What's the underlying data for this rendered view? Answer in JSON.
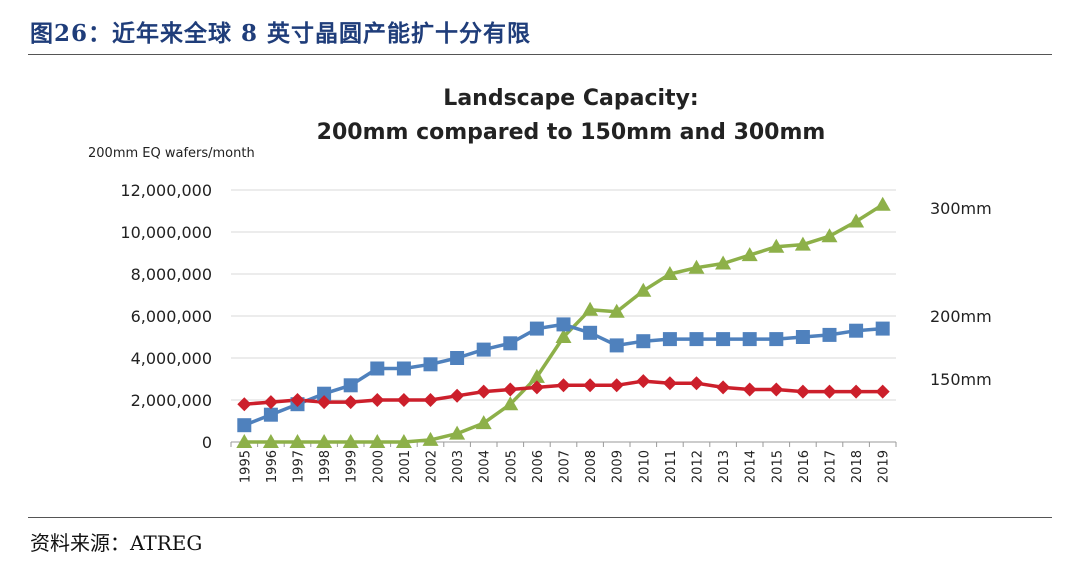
{
  "figure": {
    "title": "图26：近年来全球 8 英寸晶圆产能扩十分有限",
    "source": "资料来源：ATREG"
  },
  "chart_data": {
    "type": "line",
    "title": [
      "Landscape Capacity:",
      "200mm compared to 150mm and 300mm"
    ],
    "ylabel": "200mm EQ wafers/month",
    "xlabel": "",
    "ylim": [
      0,
      12000000
    ],
    "yticks": [
      0,
      2000000,
      4000000,
      6000000,
      8000000,
      10000000,
      12000000
    ],
    "ytick_labels": [
      "0",
      "2,000,000",
      "4,000,000",
      "6,000,000",
      "8,000,000",
      "10,000,000",
      "12,000,000"
    ],
    "grid": true,
    "x": [
      "1995",
      "1996",
      "1997",
      "1998",
      "1999",
      "2000",
      "2001",
      "2002",
      "2003",
      "2004",
      "2005",
      "2006",
      "2007",
      "2008",
      "2009",
      "2010",
      "2011",
      "2012",
      "2013",
      "2014",
      "2015",
      "2016",
      "2017",
      "2018",
      "2019"
    ],
    "series": [
      {
        "name": "300mm",
        "color": "#8db049",
        "marker": "triangle",
        "values": [
          0,
          0,
          0,
          0,
          0,
          0,
          0,
          100000,
          400000,
          900000,
          1800000,
          3100000,
          5000000,
          6300000,
          6200000,
          7200000,
          8000000,
          8300000,
          8500000,
          8900000,
          9300000,
          9400000,
          9800000,
          10500000,
          11300000
        ]
      },
      {
        "name": "200mm",
        "color": "#4f81bd",
        "marker": "square",
        "values": [
          800000,
          1300000,
          1800000,
          2300000,
          2700000,
          3500000,
          3500000,
          3700000,
          4000000,
          4400000,
          4700000,
          5400000,
          5600000,
          5200000,
          4600000,
          4800000,
          4900000,
          4900000,
          4900000,
          4900000,
          4900000,
          5000000,
          5100000,
          5300000,
          5400000
        ]
      },
      {
        "name": "150mm",
        "color": "#cc1f2b",
        "marker": "diamond",
        "values": [
          1800000,
          1900000,
          2000000,
          1900000,
          1900000,
          2000000,
          2000000,
          2000000,
          2200000,
          2400000,
          2500000,
          2600000,
          2700000,
          2700000,
          2700000,
          2900000,
          2800000,
          2800000,
          2600000,
          2500000,
          2500000,
          2400000,
          2400000,
          2400000,
          2400000
        ]
      }
    ]
  }
}
